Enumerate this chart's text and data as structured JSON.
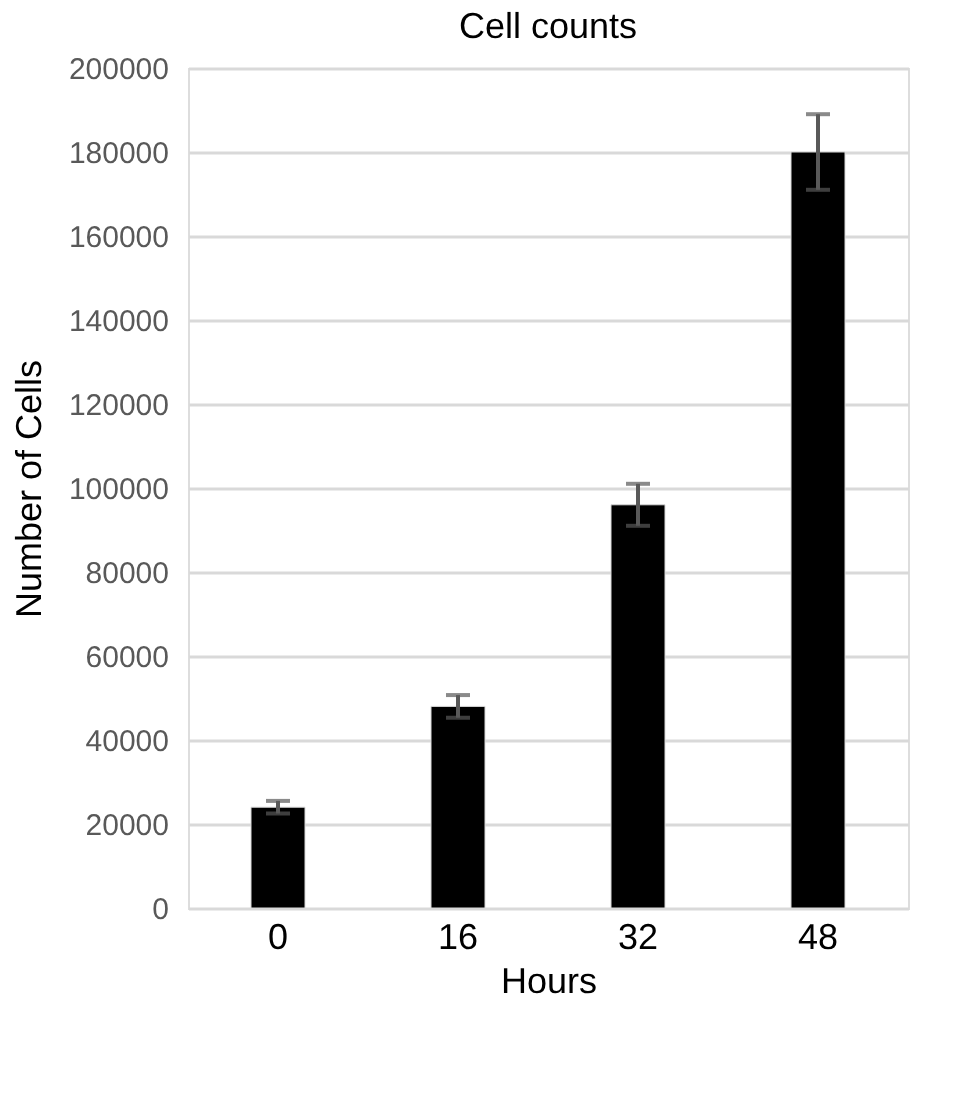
{
  "chart_data": {
    "type": "bar",
    "title": "Cell counts",
    "xlabel": "Hours",
    "ylabel": "Number of Cells",
    "categories": [
      "0",
      "16",
      "32",
      "48"
    ],
    "values": [
      24000,
      48000,
      96000,
      180000
    ],
    "errors": [
      1500,
      2700,
      5000,
      9000
    ],
    "color": "#000000",
    "ylim": [
      0,
      200000
    ],
    "yticks": [
      0,
      20000,
      40000,
      60000,
      80000,
      100000,
      120000,
      140000,
      160000,
      180000,
      200000
    ],
    "grid": "y"
  }
}
